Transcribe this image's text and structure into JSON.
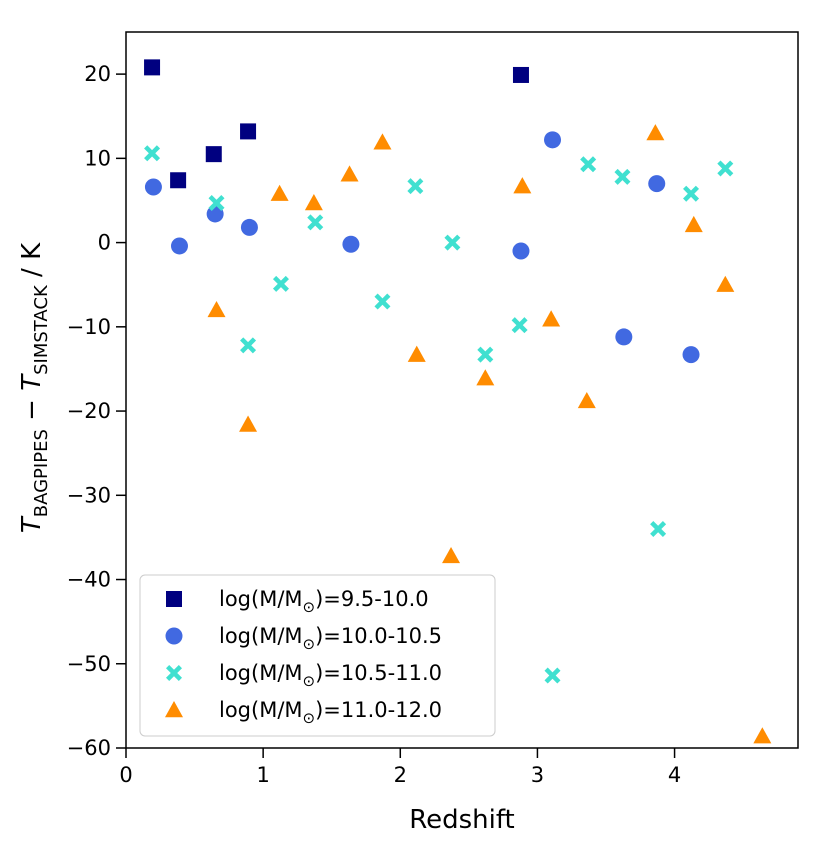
{
  "chart_data": {
    "type": "scatter",
    "title": "",
    "xlabel": "Redshift",
    "ylabel": {
      "main_T1": "T",
      "sub1": "BAGPIPES",
      "minus": " − ",
      "main_T2": "T",
      "sub2": "SIMSTACK",
      "unit": " / K"
    },
    "xlim": [
      0,
      4.9
    ],
    "ylim": [
      -60,
      25
    ],
    "xticks": [
      0,
      1,
      2,
      3,
      4
    ],
    "xtick_labels": [
      "0",
      "1",
      "2",
      "3",
      "4"
    ],
    "yticks": [
      20,
      10,
      0,
      -10,
      -20,
      -30,
      -40,
      -50,
      -60
    ],
    "ytick_labels": [
      "20",
      "10",
      "0",
      "−10",
      "−20",
      "−30",
      "−40",
      "−50",
      "−60"
    ],
    "legend_position": "lower-left",
    "series": [
      {
        "name": "log(M/M☉)=9.5-10.0",
        "label_prefix": "log(M/M",
        "label_sub": "⊙",
        "label_suffix": ")=9.5-10.0",
        "marker": "square",
        "color": "#000080",
        "points": [
          [
            0.19,
            20.8
          ],
          [
            0.38,
            7.4
          ],
          [
            0.64,
            10.5
          ],
          [
            0.89,
            13.2
          ],
          [
            2.88,
            19.9
          ]
        ]
      },
      {
        "name": "log(M/M☉)=10.0-10.5",
        "label_prefix": "log(M/M",
        "label_sub": "⊙",
        "label_suffix": ")=10.0-10.5",
        "marker": "circle",
        "color": "#4169e1",
        "points": [
          [
            0.2,
            6.6
          ],
          [
            0.39,
            -0.4
          ],
          [
            0.65,
            3.4
          ],
          [
            0.9,
            1.8
          ],
          [
            1.64,
            -0.2
          ],
          [
            2.88,
            -1.0
          ],
          [
            3.11,
            12.2
          ],
          [
            3.63,
            -11.2
          ],
          [
            3.87,
            7.0
          ],
          [
            4.12,
            -13.3
          ]
        ]
      },
      {
        "name": "log(M/M☉)=10.5-11.0",
        "label_prefix": "log(M/M",
        "label_sub": "⊙",
        "label_suffix": ")=10.5-11.0",
        "marker": "x",
        "color": "#40e0d0",
        "points": [
          [
            0.19,
            10.6
          ],
          [
            0.66,
            4.7
          ],
          [
            0.89,
            -12.2
          ],
          [
            1.13,
            -4.9
          ],
          [
            1.38,
            2.4
          ],
          [
            1.87,
            -7.0
          ],
          [
            2.11,
            6.7
          ],
          [
            2.38,
            0.0
          ],
          [
            2.62,
            -13.3
          ],
          [
            2.87,
            -9.8
          ],
          [
            3.11,
            -51.4
          ],
          [
            3.37,
            9.3
          ],
          [
            3.62,
            7.8
          ],
          [
            3.88,
            -34.0
          ],
          [
            4.12,
            5.8
          ],
          [
            4.37,
            8.8
          ]
        ]
      },
      {
        "name": "log(M/M☉)=11.0-12.0",
        "label_prefix": "log(M/M",
        "label_sub": "⊙",
        "label_suffix": ")=11.0-12.0",
        "marker": "triangle",
        "color": "#ff8c00",
        "points": [
          [
            0.66,
            -8.0
          ],
          [
            0.89,
            -21.6
          ],
          [
            1.12,
            5.8
          ],
          [
            1.37,
            4.7
          ],
          [
            1.63,
            8.1
          ],
          [
            1.87,
            11.9
          ],
          [
            2.12,
            -13.3
          ],
          [
            2.37,
            -37.2
          ],
          [
            2.62,
            -16.1
          ],
          [
            2.89,
            6.7
          ],
          [
            3.1,
            -9.1
          ],
          [
            3.36,
            -18.8
          ],
          [
            3.86,
            13.0
          ],
          [
            4.14,
            2.1
          ],
          [
            4.37,
            -5.0
          ],
          [
            4.64,
            -58.6
          ]
        ]
      }
    ]
  }
}
